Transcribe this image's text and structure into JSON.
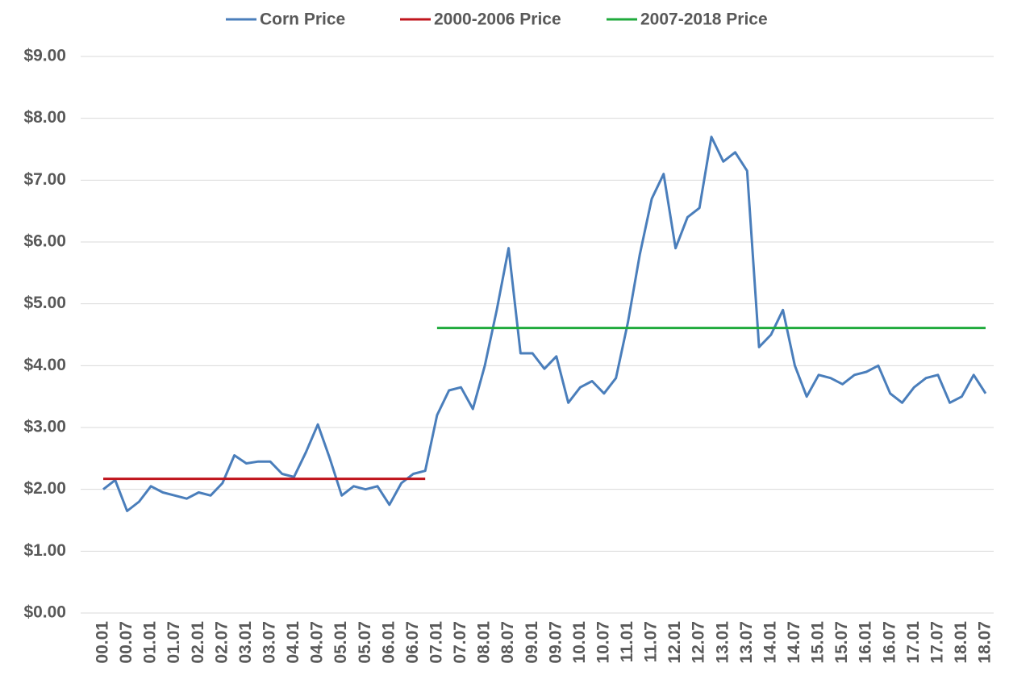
{
  "chart_data": {
    "type": "line",
    "categories": [
      "00.01",
      null,
      "00.07",
      null,
      "01.01",
      null,
      "01.07",
      null,
      "02.01",
      null,
      "02.07",
      null,
      "03.01",
      null,
      "03.07",
      null,
      "04.01",
      null,
      "04.07",
      null,
      "05.01",
      null,
      "05.07",
      null,
      "06.01",
      null,
      "06.07",
      null,
      "07.01",
      null,
      "07.07",
      null,
      "08.01",
      null,
      "08.07",
      null,
      "09.01",
      null,
      "09.07",
      null,
      "10.01",
      null,
      "10.07",
      null,
      "11.01",
      null,
      "11.07",
      null,
      "12.01",
      null,
      "12.07",
      null,
      "13.01",
      null,
      "13.07",
      null,
      "14.01",
      null,
      "14.07",
      null,
      "15.01",
      null,
      "15.07",
      null,
      "16.01",
      null,
      "16.07",
      null,
      "17.01",
      null,
      "17.07",
      null,
      "18.01",
      null,
      "18.07"
    ],
    "series": [
      {
        "name": "Corn Price",
        "color": "#4a7ebb",
        "values": [
          2.0,
          2.15,
          1.65,
          1.8,
          2.05,
          1.95,
          1.9,
          1.85,
          1.95,
          1.9,
          2.1,
          2.55,
          2.42,
          2.45,
          2.45,
          2.25,
          2.2,
          2.6,
          3.05,
          2.5,
          1.9,
          2.05,
          2.0,
          2.05,
          1.75,
          2.1,
          2.25,
          2.3,
          3.2,
          3.6,
          3.65,
          3.3,
          4.0,
          4.9,
          5.9,
          4.2,
          4.2,
          3.95,
          4.15,
          3.4,
          3.65,
          3.75,
          3.55,
          3.8,
          4.7,
          5.8,
          6.7,
          7.1,
          5.9,
          6.4,
          6.55,
          7.7,
          7.3,
          7.45,
          7.15,
          4.3,
          4.5,
          4.9,
          4.0,
          3.5,
          3.85,
          3.8,
          3.7,
          3.85,
          3.9,
          4.0,
          3.55,
          3.4,
          3.65,
          3.8,
          3.85,
          3.4,
          3.5,
          3.85,
          3.55
        ]
      },
      {
        "name": "2000-2006 Price",
        "color": "#c0141c",
        "values": [
          2.17,
          2.17,
          2.17,
          2.17,
          2.17,
          2.17,
          2.17,
          2.17,
          2.17,
          2.17,
          2.17,
          2.17,
          2.17,
          2.17,
          2.17,
          2.17,
          2.17,
          2.17,
          2.17,
          2.17,
          2.17,
          2.17,
          2.17,
          2.17,
          2.17,
          2.17,
          2.17,
          2.17,
          null,
          null,
          null,
          null,
          null,
          null,
          null,
          null,
          null,
          null,
          null,
          null,
          null,
          null,
          null,
          null,
          null,
          null,
          null,
          null,
          null,
          null,
          null,
          null,
          null,
          null,
          null,
          null,
          null,
          null,
          null,
          null,
          null,
          null,
          null,
          null,
          null,
          null,
          null,
          null,
          null,
          null,
          null,
          null,
          null,
          null,
          null
        ]
      },
      {
        "name": "2007-2018 Price",
        "color": "#1faa3c",
        "values": [
          null,
          null,
          null,
          null,
          null,
          null,
          null,
          null,
          null,
          null,
          null,
          null,
          null,
          null,
          null,
          null,
          null,
          null,
          null,
          null,
          null,
          null,
          null,
          null,
          null,
          null,
          null,
          null,
          4.61,
          4.61,
          4.61,
          4.61,
          4.61,
          4.61,
          4.61,
          4.61,
          4.61,
          4.61,
          4.61,
          4.61,
          4.61,
          4.61,
          4.61,
          4.61,
          4.61,
          4.61,
          4.61,
          4.61,
          4.61,
          4.61,
          4.61,
          4.61,
          4.61,
          4.61,
          4.61,
          4.61,
          4.61,
          4.61,
          4.61,
          4.61,
          4.61,
          4.61,
          4.61,
          4.61,
          4.61,
          4.61,
          4.61,
          4.61,
          4.61,
          4.61,
          4.61,
          4.61,
          4.61,
          4.61,
          4.61
        ]
      }
    ],
    "ylim": [
      0,
      9
    ],
    "yticks": [
      {
        "value": 0,
        "label": "$0.00"
      },
      {
        "value": 1,
        "label": "$1.00"
      },
      {
        "value": 2,
        "label": "$2.00"
      },
      {
        "value": 3,
        "label": "$3.00"
      },
      {
        "value": 4,
        "label": "$4.00"
      },
      {
        "value": 5,
        "label": "$5.00"
      },
      {
        "value": 6,
        "label": "$6.00"
      },
      {
        "value": 7,
        "label": "$7.00"
      },
      {
        "value": 8,
        "label": "$8.00"
      },
      {
        "value": 9,
        "label": "$9.00"
      }
    ],
    "grid": true,
    "legend": "top"
  }
}
